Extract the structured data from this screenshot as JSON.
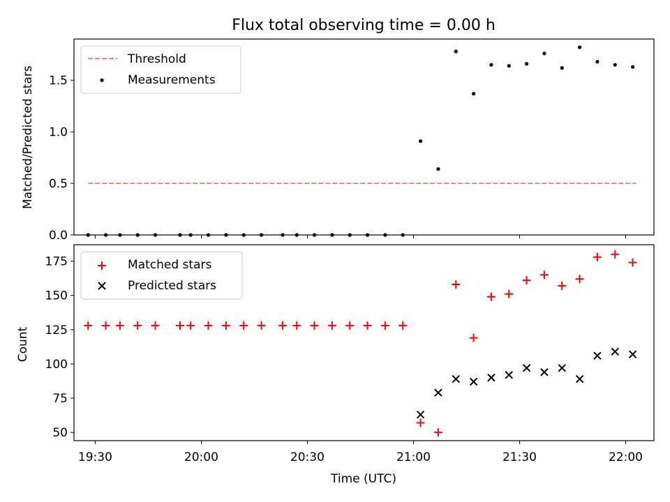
{
  "chart_data": [
    {
      "type": "scatter",
      "title": "Flux total observing time = 0.00 h",
      "ylabel": "Matched/Predicted stars",
      "xlim": [
        "19:24",
        "22:08"
      ],
      "ylim": [
        0,
        1.9
      ],
      "y_ticks": [
        "0.0",
        "0.5",
        "1.0",
        "1.5"
      ],
      "legend": "upper-left",
      "series": [
        {
          "name": "Threshold",
          "kind": "dashed-line",
          "color": "#ff7f7f",
          "x": [
            "19:28",
            "22:03"
          ],
          "y": [
            0.5,
            0.5
          ]
        },
        {
          "name": "Measurements",
          "kind": "dot",
          "color": "#000000",
          "x": [
            "19:28",
            "19:33",
            "19:37",
            "19:42",
            "19:47",
            "19:54",
            "19:57",
            "20:02",
            "20:07",
            "20:12",
            "20:17",
            "20:23",
            "20:27",
            "20:32",
            "20:37",
            "20:42",
            "20:47",
            "20:52",
            "20:57",
            "21:02",
            "21:07",
            "21:12",
            "21:17",
            "21:22",
            "21:27",
            "21:32",
            "21:37",
            "21:42",
            "21:47",
            "21:52",
            "21:57",
            "22:02"
          ],
          "y": [
            0,
            0,
            0,
            0,
            0,
            0,
            0,
            0,
            0,
            0,
            0,
            0,
            0,
            0,
            0,
            0,
            0,
            0,
            0,
            0.91,
            0.64,
            1.78,
            1.37,
            1.65,
            1.64,
            1.66,
            1.76,
            1.62,
            1.82,
            1.68,
            1.65,
            1.63
          ]
        }
      ]
    },
    {
      "type": "scatter",
      "xlabel": "Time (UTC)",
      "ylabel": "Count",
      "xlim": [
        "19:24",
        "22:08"
      ],
      "ylim": [
        44,
        187
      ],
      "y_ticks": [
        "50",
        "75",
        "100",
        "125",
        "150",
        "175"
      ],
      "x_ticks": [
        "19:30",
        "20:00",
        "20:30",
        "21:00",
        "21:30",
        "22:00"
      ],
      "legend": "upper-left",
      "series": [
        {
          "name": "Matched stars",
          "kind": "plus",
          "color": "#ff0000",
          "x": [
            "19:28",
            "19:33",
            "19:37",
            "19:42",
            "19:47",
            "19:54",
            "19:57",
            "20:02",
            "20:07",
            "20:12",
            "20:17",
            "20:23",
            "20:27",
            "20:32",
            "20:37",
            "20:42",
            "20:47",
            "20:52",
            "20:57",
            "21:02",
            "21:07",
            "21:12",
            "21:17",
            "21:22",
            "21:27",
            "21:32",
            "21:37",
            "21:42",
            "21:47",
            "21:52",
            "21:57",
            "22:02"
          ],
          "y": [
            128,
            128,
            128,
            128,
            128,
            128,
            128,
            128,
            128,
            128,
            128,
            128,
            128,
            128,
            128,
            128,
            128,
            128,
            128,
            57,
            50,
            158,
            119,
            149,
            151,
            161,
            165,
            157,
            162,
            178,
            180,
            174
          ]
        },
        {
          "name": "Predicted stars",
          "kind": "x",
          "color": "#000000",
          "x": [
            "21:02",
            "21:07",
            "21:12",
            "21:17",
            "21:22",
            "21:27",
            "21:32",
            "21:37",
            "21:42",
            "21:47",
            "21:52",
            "21:57",
            "22:02"
          ],
          "y": [
            63,
            79,
            89,
            87,
            90,
            92,
            97,
            94,
            97,
            89,
            106,
            109,
            107
          ]
        }
      ]
    }
  ]
}
